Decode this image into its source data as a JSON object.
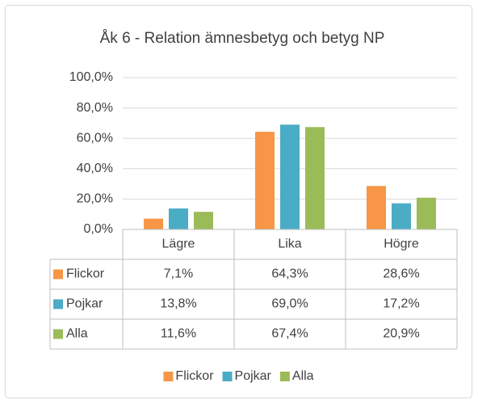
{
  "chart_data": {
    "type": "bar",
    "title": "Åk 6 - Relation ämnesbetyg och betyg NP",
    "categories": [
      "Lägre",
      "Lika",
      "Högre"
    ],
    "series": [
      {
        "name": "Flickor",
        "color": "#F79646",
        "values": [
          7.1,
          64.3,
          28.6
        ],
        "value_labels": [
          "7,1%",
          "64,3%",
          "28,6%"
        ]
      },
      {
        "name": "Pojkar",
        "color": "#4BACC6",
        "values": [
          13.8,
          69.0,
          17.2
        ],
        "value_labels": [
          "13,8%",
          "69,0%",
          "17,2%"
        ]
      },
      {
        "name": "Alla",
        "color": "#9BBB59",
        "values": [
          11.6,
          67.4,
          20.9
        ],
        "value_labels": [
          "11,6%",
          "67,4%",
          "20,9%"
        ]
      }
    ],
    "ylim": [
      0,
      100
    ],
    "yticks": [
      {
        "value": 0,
        "label": "0,0%"
      },
      {
        "value": 20,
        "label": "20,0%"
      },
      {
        "value": 40,
        "label": "40,0%"
      },
      {
        "value": 60,
        "label": "60,0%"
      },
      {
        "value": 80,
        "label": "80,0%"
      },
      {
        "value": 100,
        "label": "100,0%"
      }
    ],
    "grid": true,
    "legend": "bottom"
  }
}
